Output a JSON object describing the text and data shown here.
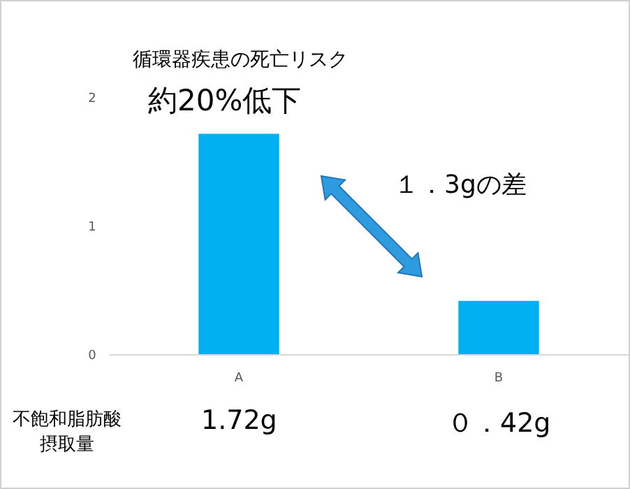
{
  "chart_data": {
    "type": "bar",
    "title": "循環器疾患の死亡リスク",
    "subtitle": "約20%低下",
    "categories": [
      "A",
      "B"
    ],
    "values": [
      1.72,
      0.42
    ],
    "color": "#00b0f0",
    "value_labels": [
      "1.72g",
      "０．42g"
    ],
    "ylim": [
      0,
      2
    ],
    "yticks": [
      0,
      1,
      2
    ],
    "grid": false,
    "annotations": [
      "１．3gの差",
      "不飽和脂肪酸摂取量"
    ]
  }
}
